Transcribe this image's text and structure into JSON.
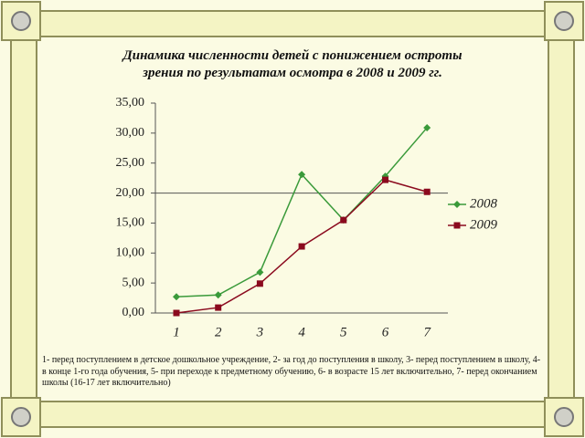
{
  "chart_data": {
    "type": "line",
    "title": "Динамика численности детей с понижением остроты зрения по результатам осмотра в 2008 и 2009 гг.",
    "categories": [
      "1",
      "2",
      "3",
      "4",
      "5",
      "6",
      "7"
    ],
    "series": [
      {
        "name": "2008",
        "color": "#3a9a3a",
        "marker": "diamond",
        "values": [
          2.7,
          3.0,
          6.8,
          23.1,
          15.5,
          22.8,
          30.9
        ]
      },
      {
        "name": "2009",
        "color": "#8b0a1e",
        "marker": "square",
        "values": [
          0.0,
          0.9,
          4.9,
          11.1,
          15.5,
          22.2,
          20.2
        ]
      }
    ],
    "ylim": [
      0,
      35
    ],
    "yticks": [
      {
        "value": 0,
        "label": "0,00"
      },
      {
        "value": 5,
        "label": "5,00"
      },
      {
        "value": 10,
        "label": "10,00"
      },
      {
        "value": 15,
        "label": "15,00"
      },
      {
        "value": 20,
        "label": "20,00"
      },
      {
        "value": 25,
        "label": "25,00"
      },
      {
        "value": 30,
        "label": "30,00"
      },
      {
        "value": 35,
        "label": "35,00"
      }
    ],
    "reference_line": 20,
    "legend": "right",
    "note": "1- перед поступлением в детское дошкольное учреждение, 2- за год до поступления в школу, 3- перед поступлением в школу, 4- в конце 1-го года обучения, 5- при переходе к предметному обучению, 6- в возрасте 15 лет включительно, 7- перед окончанием школы (16-17 лет включительно)"
  }
}
